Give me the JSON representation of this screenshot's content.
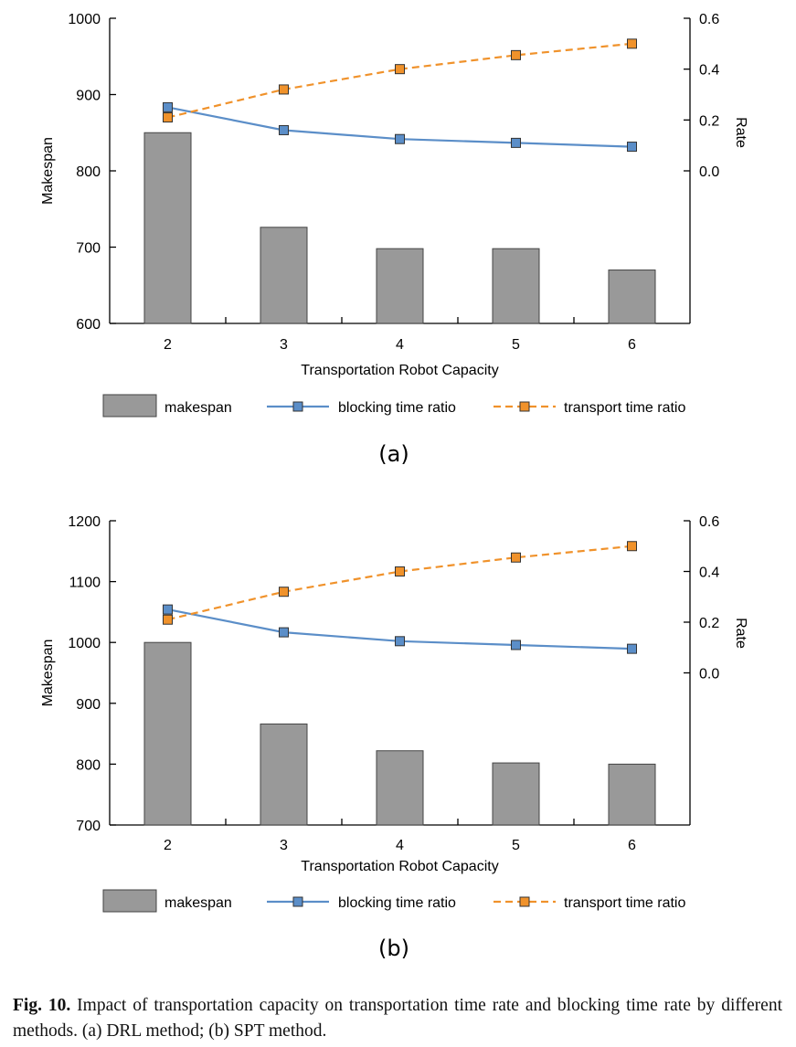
{
  "chart_data": [
    {
      "type": "bar+line",
      "label": "(a)",
      "categories": [
        "2",
        "3",
        "4",
        "5",
        "6"
      ],
      "xlabel": "Transportation Robot Capacity",
      "ylabel": "Makespan",
      "y2label": "Rate",
      "ylim": [
        600,
        1000
      ],
      "yticks": [
        "600",
        "700",
        "800",
        "900",
        "1000"
      ],
      "y2lim": [
        -0.6,
        0.6
      ],
      "y2ticks": [
        "0.0",
        "0.2",
        "0.4",
        "0.6"
      ],
      "bars": {
        "name": "makespan",
        "values": [
          850,
          726,
          698,
          698,
          670
        ],
        "color": "#999999"
      },
      "series": [
        {
          "name": "blocking time ratio",
          "axis": "right",
          "values": [
            0.25,
            0.16,
            0.125,
            0.11,
            0.095
          ],
          "color": "#5b8ec8",
          "dashed": false
        },
        {
          "name": "transport time ratio",
          "axis": "right",
          "values": [
            0.21,
            0.32,
            0.4,
            0.455,
            0.5
          ],
          "color": "#f0922b",
          "dashed": true
        }
      ]
    },
    {
      "type": "bar+line",
      "label": "(b)",
      "categories": [
        "2",
        "3",
        "4",
        "5",
        "6"
      ],
      "xlabel": "Transportation Robot Capacity",
      "ylabel": "Makespan",
      "y2label": "Rate",
      "ylim": [
        700,
        1200
      ],
      "yticks": [
        "700",
        "800",
        "900",
        "1000",
        "1100",
        "1200"
      ],
      "y2lim": [
        -0.6,
        0.6
      ],
      "y2ticks": [
        "0.0",
        "0.2",
        "0.4",
        "0.6"
      ],
      "bars": {
        "name": "makespan",
        "values": [
          1000,
          866,
          822,
          802,
          800
        ],
        "color": "#999999"
      },
      "series": [
        {
          "name": "blocking time ratio",
          "axis": "right",
          "values": [
            0.25,
            0.16,
            0.125,
            0.11,
            0.095
          ],
          "color": "#5b8ec8",
          "dashed": false
        },
        {
          "name": "transport time ratio",
          "axis": "right",
          "values": [
            0.21,
            0.32,
            0.4,
            0.455,
            0.5
          ],
          "color": "#f0922b",
          "dashed": true
        }
      ]
    }
  ],
  "caption": {
    "label": "Fig. 10.",
    "text": "Impact of transportation capacity on transportation time rate and blocking time rate by different methods. (a) DRL method; (b) SPT method."
  }
}
